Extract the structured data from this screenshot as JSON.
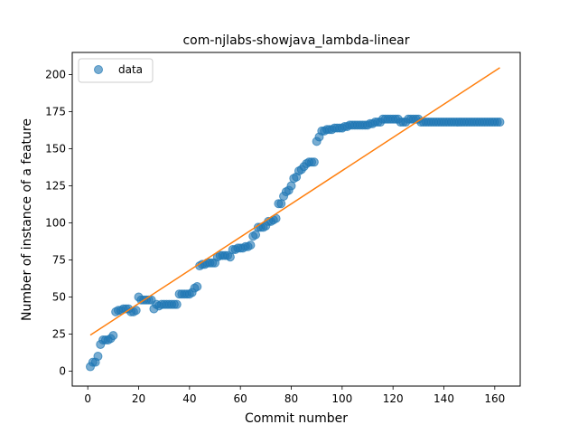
{
  "chart_data": {
    "type": "scatter",
    "title": "com-njlabs-showjava_lambda-linear",
    "xlabel": "Commit number",
    "ylabel": "Number of instance of a feature",
    "xlim": [
      -6.1,
      170
    ],
    "ylim": [
      -10.1,
      215
    ],
    "x_ticks": [
      0,
      20,
      40,
      60,
      80,
      100,
      120,
      140,
      160
    ],
    "y_ticks": [
      0,
      25,
      50,
      75,
      100,
      125,
      150,
      175,
      200
    ],
    "legend": {
      "position": "upper-left",
      "entries": [
        "data"
      ]
    },
    "colors": {
      "data": "#1f77b4",
      "fit": "#ff7f0e"
    },
    "grid": false,
    "series": [
      {
        "name": "data",
        "kind": "scatter",
        "points": [
          [
            1,
            3
          ],
          [
            2,
            6
          ],
          [
            3,
            6
          ],
          [
            4,
            10
          ],
          [
            5,
            18
          ],
          [
            6,
            21
          ],
          [
            7,
            21
          ],
          [
            8,
            21
          ],
          [
            9,
            22
          ],
          [
            10,
            24
          ],
          [
            11,
            40
          ],
          [
            12,
            41
          ],
          [
            13,
            41
          ],
          [
            14,
            42
          ],
          [
            15,
            42
          ],
          [
            16,
            42
          ],
          [
            17,
            40
          ],
          [
            18,
            40
          ],
          [
            19,
            41
          ],
          [
            20,
            50
          ],
          [
            21,
            48
          ],
          [
            22,
            48
          ],
          [
            23,
            48
          ],
          [
            24,
            48
          ],
          [
            25,
            48
          ],
          [
            26,
            42
          ],
          [
            27,
            45
          ],
          [
            28,
            44
          ],
          [
            29,
            45
          ],
          [
            30,
            45
          ],
          [
            31,
            45
          ],
          [
            32,
            45
          ],
          [
            33,
            45
          ],
          [
            34,
            45
          ],
          [
            35,
            45
          ],
          [
            36,
            52
          ],
          [
            37,
            52
          ],
          [
            38,
            52
          ],
          [
            39,
            52
          ],
          [
            40,
            52
          ],
          [
            41,
            53
          ],
          [
            42,
            56
          ],
          [
            43,
            57
          ],
          [
            44,
            71
          ],
          [
            45,
            72
          ],
          [
            46,
            72
          ],
          [
            47,
            73
          ],
          [
            48,
            73
          ],
          [
            49,
            73
          ],
          [
            50,
            73
          ],
          [
            51,
            77
          ],
          [
            52,
            78
          ],
          [
            53,
            78
          ],
          [
            54,
            78
          ],
          [
            55,
            78
          ],
          [
            56,
            77
          ],
          [
            57,
            82
          ],
          [
            58,
            82
          ],
          [
            59,
            83
          ],
          [
            60,
            83
          ],
          [
            61,
            83
          ],
          [
            62,
            84
          ],
          [
            63,
            84
          ],
          [
            64,
            85
          ],
          [
            65,
            91
          ],
          [
            66,
            92
          ],
          [
            67,
            97
          ],
          [
            68,
            97
          ],
          [
            69,
            97
          ],
          [
            70,
            98
          ],
          [
            71,
            101
          ],
          [
            72,
            101
          ],
          [
            73,
            102
          ],
          [
            74,
            103
          ],
          [
            75,
            113
          ],
          [
            76,
            113
          ],
          [
            77,
            118
          ],
          [
            78,
            121
          ],
          [
            79,
            122
          ],
          [
            80,
            125
          ],
          [
            81,
            130
          ],
          [
            82,
            131
          ],
          [
            83,
            135
          ],
          [
            84,
            136
          ],
          [
            85,
            138
          ],
          [
            86,
            140
          ],
          [
            87,
            141
          ],
          [
            88,
            141
          ],
          [
            89,
            141
          ],
          [
            90,
            155
          ],
          [
            91,
            158
          ],
          [
            92,
            162
          ],
          [
            93,
            162
          ],
          [
            94,
            163
          ],
          [
            95,
            163
          ],
          [
            96,
            163
          ],
          [
            97,
            164
          ],
          [
            98,
            164
          ],
          [
            99,
            164
          ],
          [
            100,
            164
          ],
          [
            101,
            165
          ],
          [
            102,
            165
          ],
          [
            103,
            166
          ],
          [
            104,
            166
          ],
          [
            105,
            166
          ],
          [
            106,
            166
          ],
          [
            107,
            166
          ],
          [
            108,
            166
          ],
          [
            109,
            166
          ],
          [
            110,
            166
          ],
          [
            111,
            167
          ],
          [
            112,
            167
          ],
          [
            113,
            168
          ],
          [
            114,
            168
          ],
          [
            115,
            168
          ],
          [
            116,
            170
          ],
          [
            117,
            170
          ],
          [
            118,
            170
          ],
          [
            119,
            170
          ],
          [
            120,
            170
          ],
          [
            121,
            170
          ],
          [
            122,
            170
          ],
          [
            123,
            168
          ],
          [
            124,
            168
          ],
          [
            125,
            168
          ],
          [
            126,
            170
          ],
          [
            127,
            170
          ],
          [
            128,
            170
          ],
          [
            129,
            170
          ],
          [
            130,
            170
          ],
          [
            131,
            168
          ],
          [
            132,
            168
          ],
          [
            133,
            168
          ],
          [
            134,
            168
          ],
          [
            135,
            168
          ],
          [
            136,
            168
          ],
          [
            137,
            168
          ],
          [
            138,
            168
          ],
          [
            139,
            168
          ],
          [
            140,
            168
          ],
          [
            141,
            168
          ],
          [
            142,
            168
          ],
          [
            143,
            168
          ],
          [
            144,
            168
          ],
          [
            145,
            168
          ],
          [
            146,
            168
          ],
          [
            147,
            168
          ],
          [
            148,
            168
          ],
          [
            149,
            168
          ],
          [
            150,
            168
          ],
          [
            151,
            168
          ],
          [
            152,
            168
          ],
          [
            153,
            168
          ],
          [
            154,
            168
          ],
          [
            155,
            168
          ],
          [
            156,
            168
          ],
          [
            157,
            168
          ],
          [
            158,
            168
          ],
          [
            159,
            168
          ],
          [
            160,
            168
          ],
          [
            161,
            168
          ],
          [
            162,
            168
          ]
        ]
      },
      {
        "kind": "line",
        "points": [
          [
            1,
            24.3
          ],
          [
            162,
            204.7
          ]
        ]
      }
    ]
  }
}
